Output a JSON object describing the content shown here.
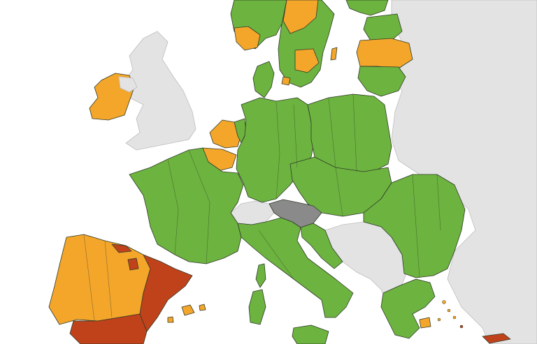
{
  "map": {
    "colors": {
      "sea": "#ffffff",
      "non_member": "#e3e3e3",
      "green": "#6db33f",
      "orange": "#f4a62a",
      "red": "#c0421a",
      "grey": "#8a8a8a"
    },
    "regions": [
      {
        "name": "iceland-scandinavia-norway",
        "status": "green"
      },
      {
        "name": "sweden",
        "status": "green"
      },
      {
        "name": "finland-baltics",
        "status": "green"
      },
      {
        "name": "latvia",
        "status": "orange"
      },
      {
        "name": "ireland",
        "status": "orange"
      },
      {
        "name": "great-britain",
        "status": "non_member"
      },
      {
        "name": "benelux",
        "status": "orange"
      },
      {
        "name": "france",
        "status": "green"
      },
      {
        "name": "germany",
        "status": "green"
      },
      {
        "name": "poland",
        "status": "green"
      },
      {
        "name": "czechia-slovakia-hungary",
        "status": "green"
      },
      {
        "name": "switzerland",
        "status": "non_member"
      },
      {
        "name": "austria",
        "status": "grey"
      },
      {
        "name": "italy",
        "status": "green"
      },
      {
        "name": "balkans",
        "status": "non_member"
      },
      {
        "name": "romania-bulgaria",
        "status": "green"
      },
      {
        "name": "greece",
        "status": "green"
      },
      {
        "name": "portugal-spain-west",
        "status": "orange"
      },
      {
        "name": "spain-east",
        "status": "red"
      },
      {
        "name": "balearic-islands",
        "status": "orange"
      },
      {
        "name": "russia-east",
        "status": "non_member"
      }
    ]
  }
}
